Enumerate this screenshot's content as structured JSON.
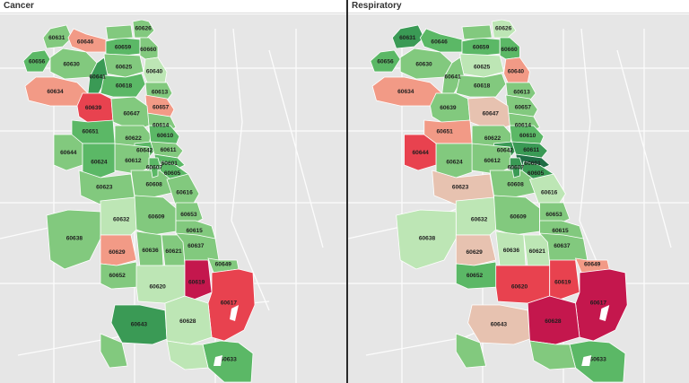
{
  "panels": [
    {
      "title": "Cancer",
      "zips": [
        {
          "code": "60631",
          "cat": 5,
          "label": true
        },
        {
          "code": "60646",
          "cat": 2,
          "label": true
        },
        {
          "code": "60659",
          "cat": 6,
          "label": true
        },
        {
          "code": "60626",
          "cat": 5,
          "label": true
        },
        {
          "code": "60660",
          "cat": 5,
          "label": true
        },
        {
          "code": "60656",
          "cat": 6,
          "label": true
        },
        {
          "code": "60630",
          "cat": 5,
          "label": true
        },
        {
          "code": "60625",
          "cat": 5,
          "label": true
        },
        {
          "code": "60640",
          "cat": 4,
          "label": true
        },
        {
          "code": "60641",
          "cat": 7,
          "label": true
        },
        {
          "code": "60618",
          "cat": 6,
          "label": true
        },
        {
          "code": "60613",
          "cat": 5,
          "label": true
        },
        {
          "code": "60634",
          "cat": 2,
          "label": true
        },
        {
          "code": "60657",
          "cat": 2,
          "label": true
        },
        {
          "code": "60639",
          "cat": 1,
          "label": true
        },
        {
          "code": "60614",
          "cat": 5,
          "label": true
        },
        {
          "code": "60647",
          "cat": 5,
          "label": true
        },
        {
          "code": "60651",
          "cat": 6,
          "label": true
        },
        {
          "code": "60622",
          "cat": 5,
          "label": true
        },
        {
          "code": "60610",
          "cat": 6,
          "label": true
        },
        {
          "code": "60642",
          "cat": 6,
          "label": true
        },
        {
          "code": "60611",
          "cat": 5,
          "label": true
        },
        {
          "code": "60644",
          "cat": 5,
          "label": true
        },
        {
          "code": "60612",
          "cat": 5,
          "label": true
        },
        {
          "code": "60601",
          "cat": 6,
          "label": true
        },
        {
          "code": "60624",
          "cat": 6,
          "label": true
        },
        {
          "code": "60607",
          "cat": 6,
          "label": true
        },
        {
          "code": "60605",
          "cat": 6,
          "label": true
        },
        {
          "code": "60623",
          "cat": 5,
          "label": true
        },
        {
          "code": "60608",
          "cat": 5,
          "label": true
        },
        {
          "code": "60616",
          "cat": 5,
          "label": true
        },
        {
          "code": "60632",
          "cat": 4,
          "label": true
        },
        {
          "code": "60609",
          "cat": 5,
          "label": true
        },
        {
          "code": "60653",
          "cat": 5,
          "label": true
        },
        {
          "code": "60615",
          "cat": 5,
          "label": true
        },
        {
          "code": "60638",
          "cat": 5,
          "label": true
        },
        {
          "code": "60629",
          "cat": 2,
          "label": true
        },
        {
          "code": "60636",
          "cat": 5,
          "label": true
        },
        {
          "code": "60621",
          "cat": 5,
          "label": true
        },
        {
          "code": "60637",
          "cat": 5,
          "label": true
        },
        {
          "code": "60652",
          "cat": 5,
          "label": true
        },
        {
          "code": "60620",
          "cat": 4,
          "label": true
        },
        {
          "code": "60619",
          "cat": 0,
          "label": true
        },
        {
          "code": "60649",
          "cat": 5,
          "label": true
        },
        {
          "code": "60617",
          "cat": 1,
          "label": true
        },
        {
          "code": "60643",
          "cat": 7,
          "label": true
        },
        {
          "code": "60628",
          "cat": 4,
          "label": true
        },
        {
          "code": "60633",
          "cat": 6,
          "label": true
        },
        {
          "code": "60655",
          "cat": 5,
          "label": false
        },
        {
          "code": "60827",
          "cat": 4,
          "label": false
        },
        {
          "code": "60645",
          "cat": 5,
          "label": false
        },
        {
          "code": "60606",
          "cat": 6,
          "label": false
        }
      ]
    },
    {
      "title": "Respiratory",
      "zips": [
        {
          "code": "60631",
          "cat": 7,
          "label": true
        },
        {
          "code": "60646",
          "cat": 6,
          "label": true
        },
        {
          "code": "60659",
          "cat": 6,
          "label": true
        },
        {
          "code": "60626",
          "cat": 4,
          "label": true
        },
        {
          "code": "60660",
          "cat": 6,
          "label": true
        },
        {
          "code": "60656",
          "cat": 6,
          "label": true
        },
        {
          "code": "60630",
          "cat": 5,
          "label": true
        },
        {
          "code": "60625",
          "cat": 4,
          "label": true
        },
        {
          "code": "60640",
          "cat": 2,
          "label": true
        },
        {
          "code": "60641",
          "cat": 5,
          "label": true
        },
        {
          "code": "60618",
          "cat": 5,
          "label": true
        },
        {
          "code": "60613",
          "cat": 5,
          "label": true
        },
        {
          "code": "60634",
          "cat": 2,
          "label": true
        },
        {
          "code": "60657",
          "cat": 5,
          "label": true
        },
        {
          "code": "60639",
          "cat": 5,
          "label": true
        },
        {
          "code": "60614",
          "cat": 5,
          "label": true
        },
        {
          "code": "60647",
          "cat": 3,
          "label": true
        },
        {
          "code": "60651",
          "cat": 2,
          "label": true
        },
        {
          "code": "60622",
          "cat": 5,
          "label": true
        },
        {
          "code": "60610",
          "cat": 6,
          "label": true
        },
        {
          "code": "60642",
          "cat": 7,
          "label": true
        },
        {
          "code": "60611",
          "cat": 7,
          "label": true
        },
        {
          "code": "60644",
          "cat": 1,
          "label": true
        },
        {
          "code": "60612",
          "cat": 5,
          "label": true
        },
        {
          "code": "60601",
          "cat": 8,
          "label": true
        },
        {
          "code": "60624",
          "cat": 5,
          "label": true
        },
        {
          "code": "60607",
          "cat": 7,
          "label": true
        },
        {
          "code": "60605",
          "cat": 7,
          "label": true
        },
        {
          "code": "60623",
          "cat": 3,
          "label": true
        },
        {
          "code": "60608",
          "cat": 5,
          "label": true
        },
        {
          "code": "60616",
          "cat": 4,
          "label": true
        },
        {
          "code": "60632",
          "cat": 4,
          "label": true
        },
        {
          "code": "60609",
          "cat": 5,
          "label": true
        },
        {
          "code": "60653",
          "cat": 5,
          "label": true
        },
        {
          "code": "60615",
          "cat": 5,
          "label": true
        },
        {
          "code": "60638",
          "cat": 4,
          "label": true
        },
        {
          "code": "60629",
          "cat": 3,
          "label": true
        },
        {
          "code": "60636",
          "cat": 4,
          "label": true
        },
        {
          "code": "60621",
          "cat": 4,
          "label": true
        },
        {
          "code": "60637",
          "cat": 5,
          "label": true
        },
        {
          "code": "60652",
          "cat": 6,
          "label": true
        },
        {
          "code": "60620",
          "cat": 1,
          "label": true
        },
        {
          "code": "60619",
          "cat": 1,
          "label": true
        },
        {
          "code": "60649",
          "cat": 2,
          "label": true
        },
        {
          "code": "60617",
          "cat": 0,
          "label": true
        },
        {
          "code": "60643",
          "cat": 3,
          "label": true
        },
        {
          "code": "60628",
          "cat": 0,
          "label": true
        },
        {
          "code": "60633",
          "cat": 6,
          "label": true
        },
        {
          "code": "60655",
          "cat": 5,
          "label": false
        },
        {
          "code": "60827",
          "cat": 5,
          "label": false
        },
        {
          "code": "60645",
          "cat": 5,
          "label": false
        },
        {
          "code": "60606",
          "cat": 7,
          "label": false
        }
      ]
    }
  ],
  "palette": [
    "#c4174d",
    "#e8424f",
    "#f29a86",
    "#e7c2b0",
    "#bde6b5",
    "#82c97e",
    "#5bb866",
    "#3a9a55",
    "#1f6e45"
  ],
  "base_map": {
    "land": "#e6e6e6",
    "road": "#ffffff",
    "zip_border": "#ffffff",
    "water": "#ffffff"
  }
}
